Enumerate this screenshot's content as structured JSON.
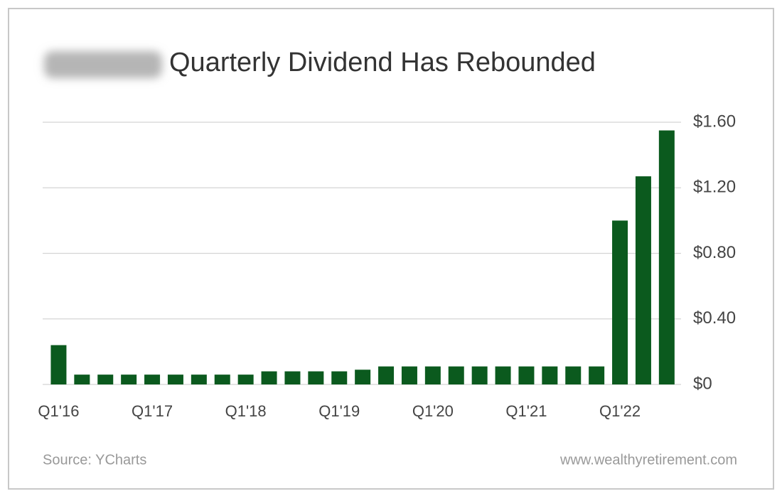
{
  "chart_data": {
    "type": "bar",
    "title": "Quarterly Dividend Has Rebounded",
    "categories": [
      "Q1'16",
      null,
      null,
      null,
      "Q1'17",
      null,
      null,
      null,
      "Q1'18",
      null,
      null,
      null,
      "Q1'19",
      null,
      null,
      null,
      "Q1'20",
      null,
      null,
      null,
      "Q1'21",
      null,
      null,
      null,
      "Q1'22",
      null,
      null
    ],
    "values": [
      0.24,
      0.06,
      0.06,
      0.06,
      0.06,
      0.06,
      0.06,
      0.06,
      0.06,
      0.08,
      0.08,
      0.08,
      0.08,
      0.09,
      0.11,
      0.11,
      0.11,
      0.11,
      0.11,
      0.11,
      0.11,
      0.11,
      0.11,
      0.11,
      1.0,
      1.27,
      1.55
    ],
    "color": "#0b5a1e",
    "ylim": [
      0,
      1.6
    ],
    "yticks": [
      {
        "value": 0,
        "label": "$0"
      },
      {
        "value": 0.4,
        "label": "$0.40"
      },
      {
        "value": 0.8,
        "label": "$0.80"
      },
      {
        "value": 1.2,
        "label": "$1.20"
      },
      {
        "value": 1.6,
        "label": "$1.60"
      }
    ],
    "grid": true,
    "source": "Source: YCharts",
    "website": "www.wealthyretirement.com"
  }
}
